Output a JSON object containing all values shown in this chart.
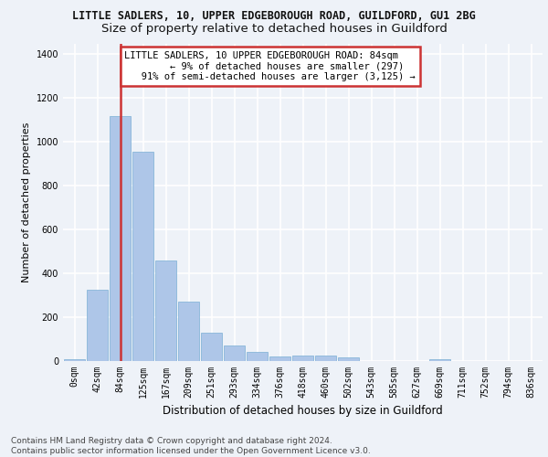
{
  "title1": "LITTLE SADLERS, 10, UPPER EDGEBOROUGH ROAD, GUILDFORD, GU1 2BG",
  "title2": "Size of property relative to detached houses in Guildford",
  "xlabel": "Distribution of detached houses by size in Guildford",
  "ylabel": "Number of detached properties",
  "footer1": "Contains HM Land Registry data © Crown copyright and database right 2024.",
  "footer2": "Contains public sector information licensed under the Open Government Licence v3.0.",
  "bar_labels": [
    "0sqm",
    "42sqm",
    "84sqm",
    "125sqm",
    "167sqm",
    "209sqm",
    "251sqm",
    "293sqm",
    "334sqm",
    "376sqm",
    "418sqm",
    "460sqm",
    "502sqm",
    "543sqm",
    "585sqm",
    "627sqm",
    "669sqm",
    "711sqm",
    "752sqm",
    "794sqm",
    "836sqm"
  ],
  "bar_values": [
    10,
    327,
    1120,
    955,
    460,
    270,
    130,
    70,
    42,
    22,
    25,
    25,
    18,
    0,
    0,
    0,
    10,
    0,
    0,
    0,
    0
  ],
  "bar_color": "#aec6e8",
  "bar_edge_color": "#7bafd4",
  "highlight_bar_index": 2,
  "highlight_color": "#cc3333",
  "annotation_line1": "LITTLE SADLERS, 10 UPPER EDGEBOROUGH ROAD: 84sqm",
  "annotation_line2": "← 9% of detached houses are smaller (297)",
  "annotation_line3": "91% of semi-detached houses are larger (3,125) →",
  "annotation_box_color": "#ffffff",
  "annotation_border_color": "#cc3333",
  "ylim_max": 1450,
  "yticks": [
    0,
    200,
    400,
    600,
    800,
    1000,
    1200,
    1400
  ],
  "background_color": "#eef2f8",
  "grid_color": "#ffffff",
  "title1_fontsize": 8.5,
  "title2_fontsize": 9.5,
  "xlabel_fontsize": 8.5,
  "ylabel_fontsize": 8.0,
  "tick_fontsize": 7.0,
  "footer_fontsize": 6.5,
  "annotation_fontsize": 7.5
}
